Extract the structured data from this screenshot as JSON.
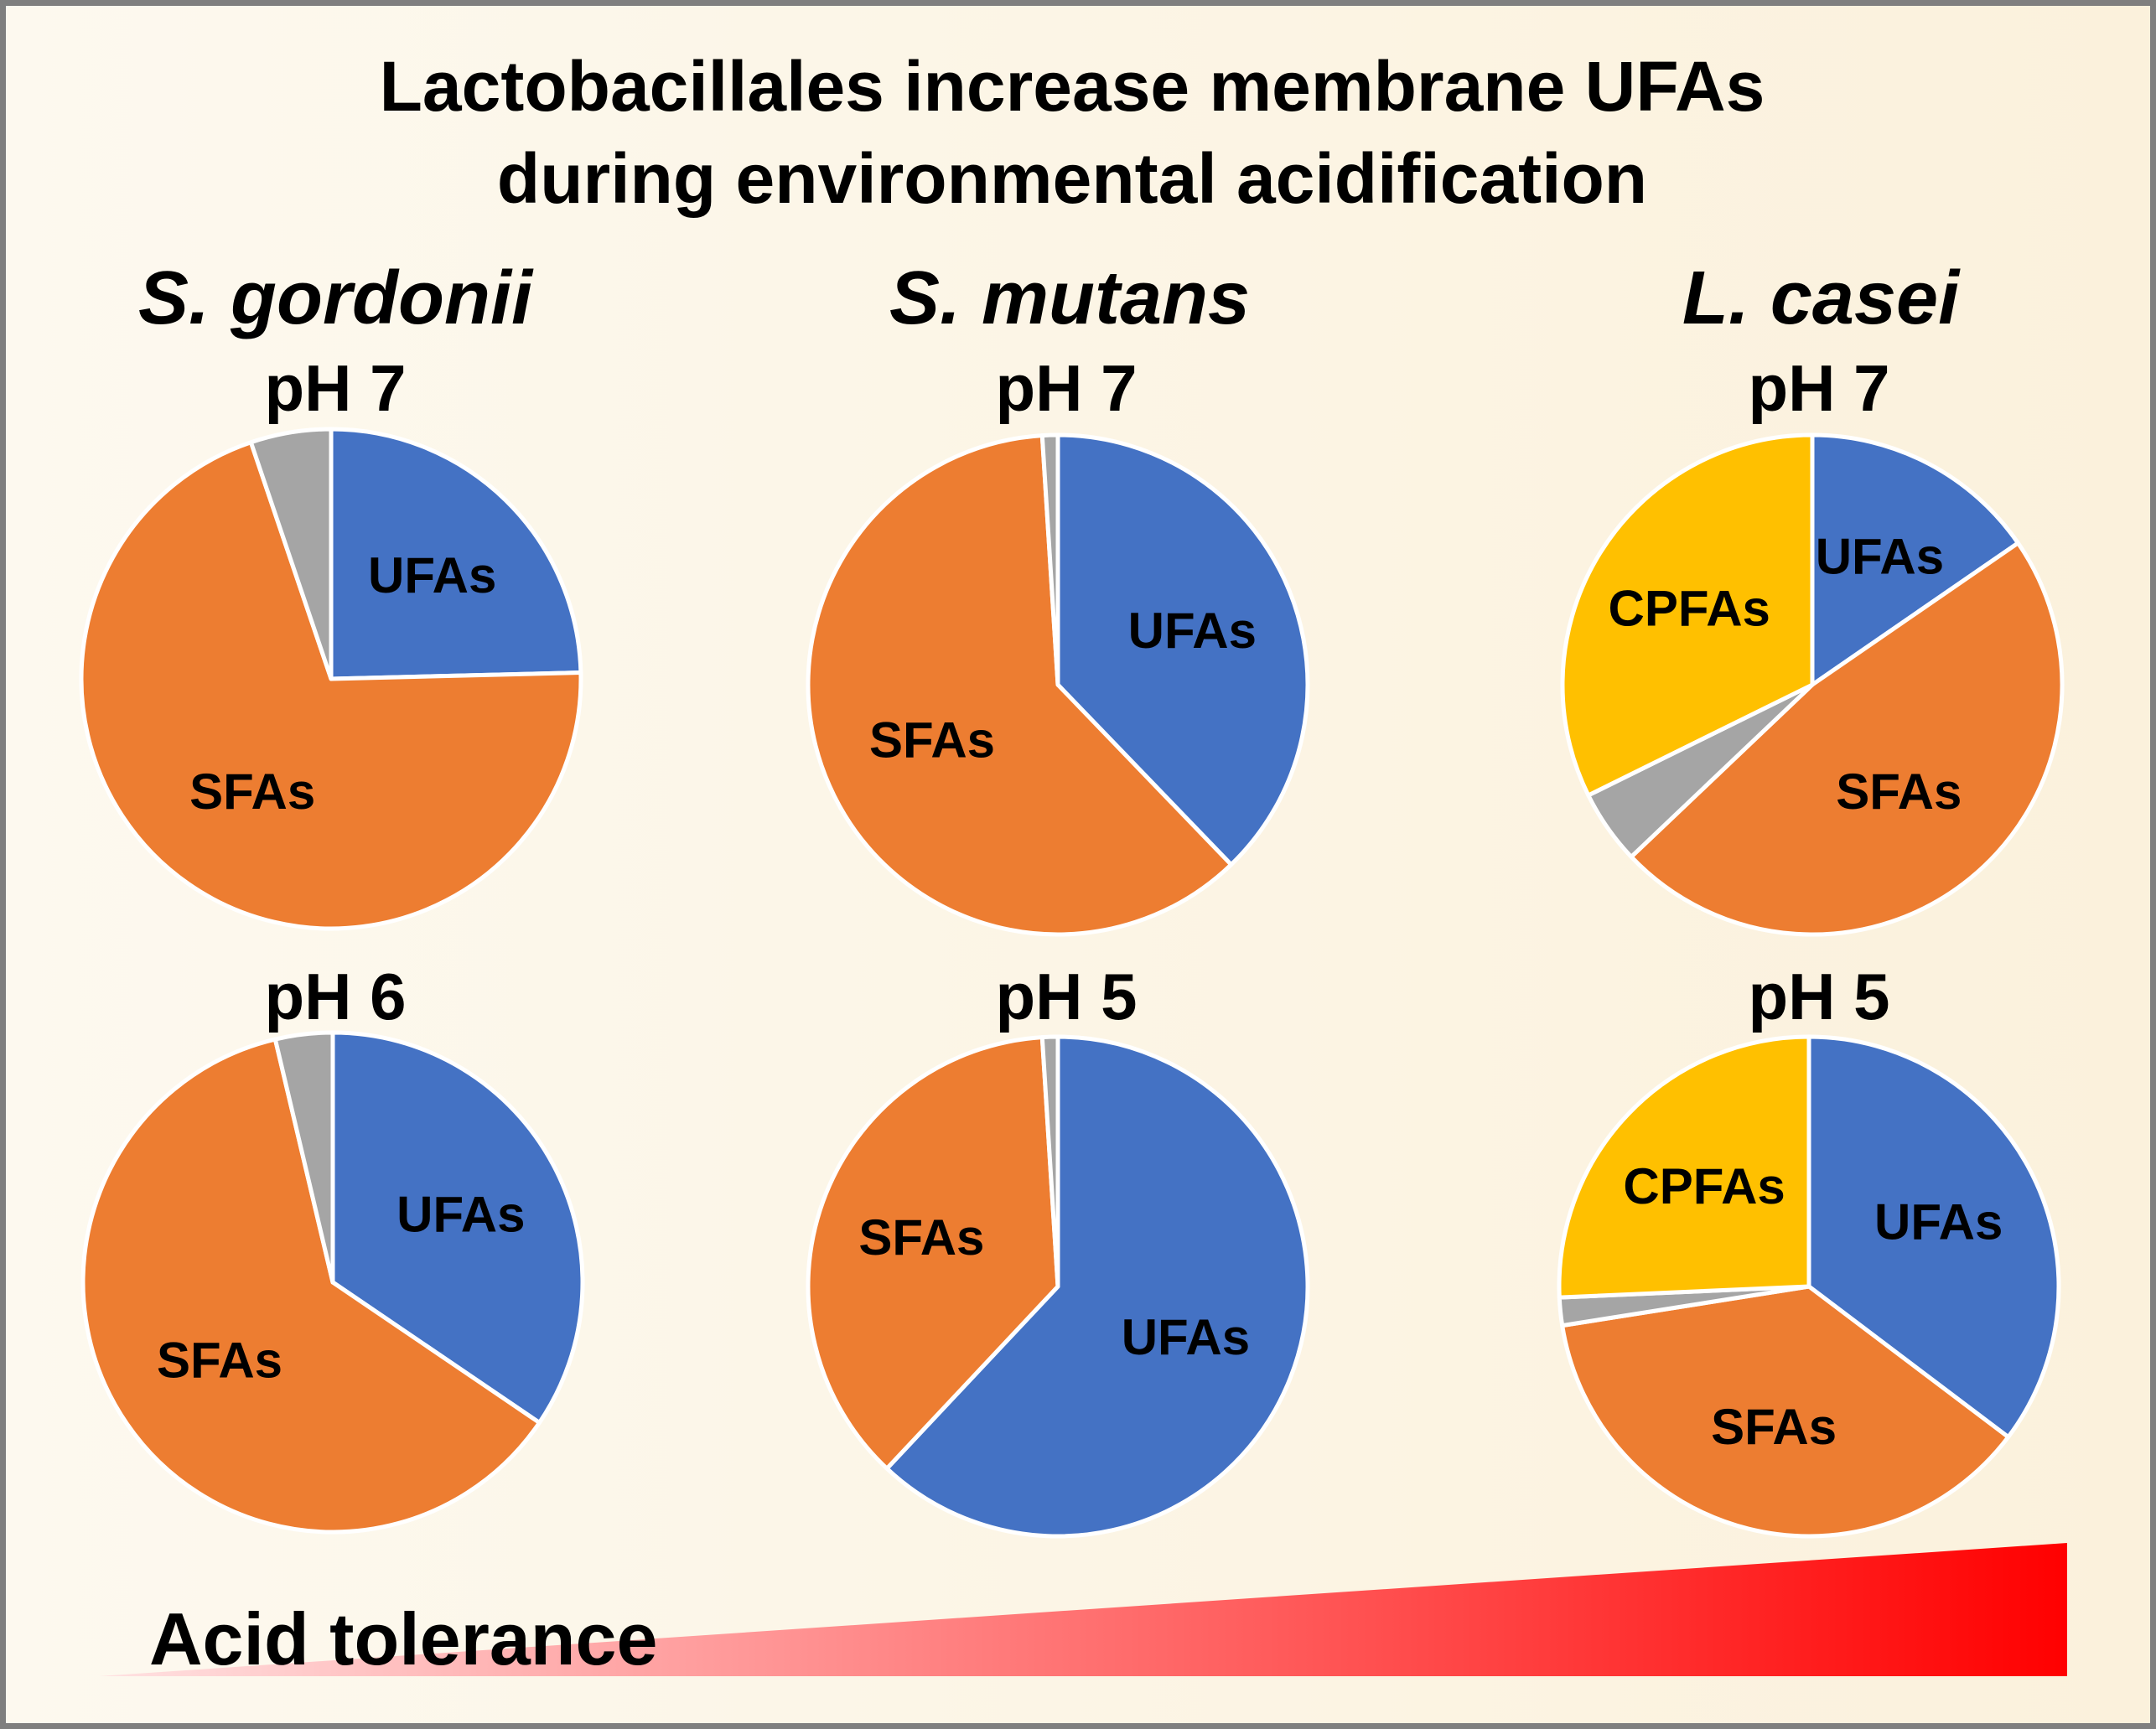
{
  "title_lines": [
    "Lactobacillales increase membrane UFAs",
    "during environmental acidification"
  ],
  "colors": {
    "UFAs": "#4472c4",
    "SFAs": "#ed7d31",
    "CPFAs": "#ffc000",
    "other": "#a5a5a5",
    "slice_edge": "#ffffff",
    "arrow_start": "#ffe2e2",
    "arrow_end": "#ff0000"
  },
  "chart_data": [
    {
      "type": "pie",
      "species": "S. gordonii",
      "condition": "pH 7",
      "slices": [
        {
          "label": "UFAs",
          "value": 24.6
        },
        {
          "label": "SFAs",
          "value": 70.2
        },
        {
          "label": "",
          "value": 5.2
        }
      ]
    },
    {
      "type": "pie",
      "species": "S. gordonii",
      "condition": "pH 6",
      "slices": [
        {
          "label": "UFAs",
          "value": 34.5
        },
        {
          "label": "SFAs",
          "value": 61.8
        },
        {
          "label": "",
          "value": 3.7
        }
      ]
    },
    {
      "type": "pie",
      "species": "S. mutans",
      "condition": "pH 7",
      "slices": [
        {
          "label": "UFAs",
          "value": 37.8
        },
        {
          "label": "SFAs",
          "value": 61.2
        },
        {
          "label": "",
          "value": 1.0
        }
      ]
    },
    {
      "type": "pie",
      "species": "S. mutans",
      "condition": "pH 5",
      "slices": [
        {
          "label": "UFAs",
          "value": 62.0
        },
        {
          "label": "SFAs",
          "value": 37.0
        },
        {
          "label": "",
          "value": 1.0
        }
      ]
    },
    {
      "type": "pie",
      "species": "L. casei",
      "condition": "pH 7",
      "slices": [
        {
          "label": "UFAs",
          "value": 15.4
        },
        {
          "label": "SFAs",
          "value": 47.5
        },
        {
          "label": "",
          "value": 4.8
        },
        {
          "label": "CPFAs",
          "value": 32.3
        }
      ]
    },
    {
      "type": "pie",
      "species": "L. casei",
      "condition": "pH 5",
      "slices": [
        {
          "label": "UFAs",
          "value": 35.3
        },
        {
          "label": "SFAs",
          "value": 37.2
        },
        {
          "label": "",
          "value": 1.8
        },
        {
          "label": "CPFAs",
          "value": 25.7
        }
      ]
    }
  ],
  "species_labels": [
    "S. gordonii",
    "S. mutans",
    "L. casei"
  ],
  "acid_tolerance_label": "Acid tolerance"
}
